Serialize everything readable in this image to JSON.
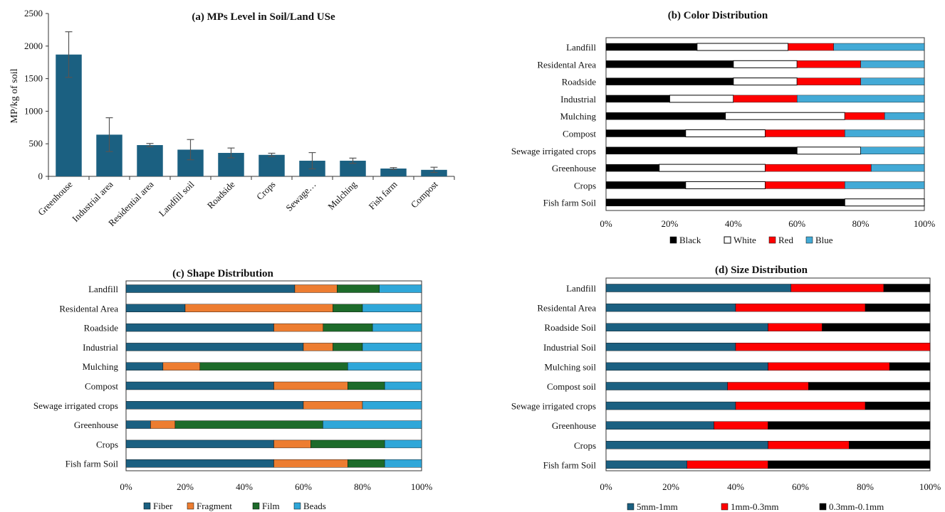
{
  "colors": {
    "teal": "#1b6081",
    "orange": "#ed7d31",
    "green": "#1d6b2a",
    "lightblue": "#2fa7d9",
    "black": "#000000",
    "white": "#ffffff",
    "red": "#ff0000",
    "blue": "#43aad6",
    "axis": "#333333"
  },
  "chart_data": [
    {
      "id": "a",
      "type": "bar",
      "title": "(a) MPs Level in Soil/Land USe",
      "ylabel": "MP/kg of soil",
      "xlabel": "",
      "ylim": [
        0,
        2500
      ],
      "yticks": [
        0,
        500,
        1000,
        1500,
        2000,
        2500
      ],
      "categories": [
        "Greenhouse",
        "Industrial area",
        "Residential area",
        "Landfill soil",
        "Roadside",
        "Crops",
        "Sewage…",
        "Mulching",
        "Fish farm",
        "Compost"
      ],
      "values": [
        1870,
        640,
        480,
        410,
        360,
        330,
        240,
        240,
        120,
        100
      ],
      "errors": [
        350,
        260,
        25,
        155,
        75,
        25,
        125,
        40,
        15,
        40
      ],
      "color": "#1b6081",
      "grid": false
    },
    {
      "id": "b",
      "type": "bar",
      "stacked": true,
      "orientation": "horizontal",
      "title": "(b) Color Distribution",
      "categories": [
        "Landfill",
        "Residental Area",
        "Roadside",
        "Industrial",
        "Mulching",
        "Compost",
        "Sewage irrigated crops",
        "Greenhouse",
        "Crops",
        "Fish farm Soil"
      ],
      "xticks": [
        "0%",
        "20%",
        "40%",
        "60%",
        "80%",
        "100%"
      ],
      "legend_position": "bottom",
      "series": [
        {
          "name": "Black",
          "color": "#000000",
          "values": [
            28.6,
            40,
            40,
            20,
            37.5,
            25,
            60,
            16.7,
            25,
            75
          ]
        },
        {
          "name": "White",
          "color": "#ffffff",
          "values": [
            28.6,
            20,
            20,
            20,
            37.5,
            25,
            20,
            33.3,
            25,
            25
          ]
        },
        {
          "name": "Red",
          "color": "#ff0000",
          "values": [
            14.3,
            20,
            20,
            20,
            12.5,
            25,
            0,
            33.3,
            25,
            0
          ]
        },
        {
          "name": "Blue",
          "color": "#43aad6",
          "values": [
            28.5,
            20,
            20,
            40,
            12.5,
            25,
            20,
            16.7,
            25,
            0
          ]
        }
      ]
    },
    {
      "id": "c",
      "type": "bar",
      "stacked": true,
      "orientation": "horizontal",
      "title": "(c) Shape Distribution",
      "categories": [
        "Landfill",
        "Residental Area",
        "Roadside",
        "Industrial",
        "Mulching",
        "Compost",
        "Sewage irrigated crops",
        "Greenhouse",
        "Crops",
        "Fish farm Soil"
      ],
      "xticks": [
        "0%",
        "20%",
        "40%",
        "60%",
        "80%",
        "100%"
      ],
      "legend_position": "bottom",
      "series": [
        {
          "name": "Fiber",
          "color": "#1b6081",
          "values": [
            57.1,
            20,
            50,
            60,
            12.5,
            50,
            60,
            8.3,
            50,
            50
          ]
        },
        {
          "name": "Fragment",
          "color": "#ed7d31",
          "values": [
            14.3,
            50,
            16.7,
            10,
            12.5,
            25,
            20,
            8.3,
            12.5,
            25
          ]
        },
        {
          "name": "Film",
          "color": "#1d6b2a",
          "values": [
            14.3,
            10,
            16.7,
            10,
            50,
            12.5,
            0,
            50,
            25,
            12.5
          ]
        },
        {
          "name": "Beads",
          "color": "#2fa7d9",
          "values": [
            14.3,
            20,
            16.6,
            20,
            25,
            12.5,
            20,
            33.4,
            12.5,
            12.5
          ]
        }
      ]
    },
    {
      "id": "d",
      "type": "bar",
      "stacked": true,
      "orientation": "horizontal",
      "title": "(d) Size Distribution",
      "categories": [
        "Landfill",
        "Residental Area",
        "Roadside Soil",
        "Industrial Soil",
        "Mulching soil",
        "Compost soil",
        "Sewage irrigated crops",
        "Greenhouse",
        "Crops",
        "Fish farm Soil"
      ],
      "xticks": [
        "0%",
        "20%",
        "40%",
        "60%",
        "80%",
        "100%"
      ],
      "legend_position": "bottom",
      "series": [
        {
          "name": "5mm-1mm",
          "color": "#1b6081",
          "values": [
            57.1,
            40,
            50,
            40,
            50,
            37.5,
            40,
            33.3,
            50,
            25
          ]
        },
        {
          "name": "1mm-0.3mm",
          "color": "#ff0000",
          "values": [
            28.6,
            40,
            16.7,
            60,
            37.5,
            25,
            40,
            16.7,
            25,
            25
          ]
        },
        {
          "name": "0.3mm-0.1mm",
          "color": "#000000",
          "values": [
            14.3,
            20,
            33.3,
            0,
            12.5,
            37.5,
            20,
            50,
            25,
            50
          ]
        }
      ]
    }
  ]
}
